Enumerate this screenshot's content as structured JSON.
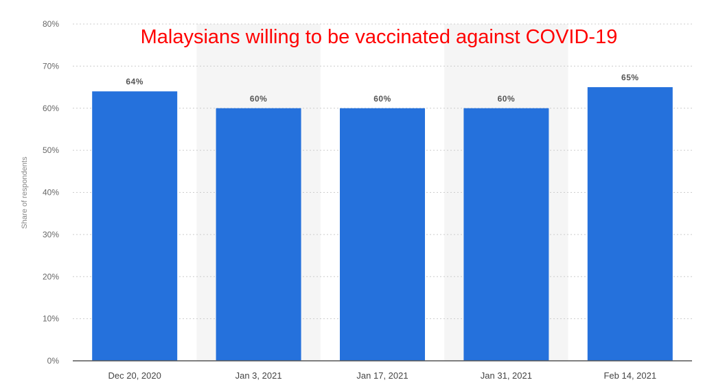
{
  "chart_data": {
    "type": "bar",
    "title": "Malaysians willing to be vaccinated against COVID-19",
    "xlabel": "",
    "ylabel": "Share of respondents",
    "categories": [
      "Dec 20, 2020",
      "Jan 3, 2021",
      "Jan 17, 2021",
      "Jan 31, 2021",
      "Feb 14, 2021"
    ],
    "values": [
      64,
      60,
      60,
      60,
      65
    ],
    "value_labels": [
      "64%",
      "60%",
      "60%",
      "60%",
      "65%"
    ],
    "ylim": [
      0,
      80
    ],
    "yticks": [
      0,
      10,
      20,
      30,
      40,
      50,
      60,
      70,
      80
    ],
    "ytick_labels": [
      "0%",
      "10%",
      "20%",
      "30%",
      "40%",
      "50%",
      "60%",
      "70%",
      "80%"
    ],
    "grid": true,
    "colors": {
      "bar": "#2571dc",
      "title": "#ff0000",
      "band": "#f5f5f5",
      "grid": "#cccccc",
      "axis": "#555555"
    }
  }
}
